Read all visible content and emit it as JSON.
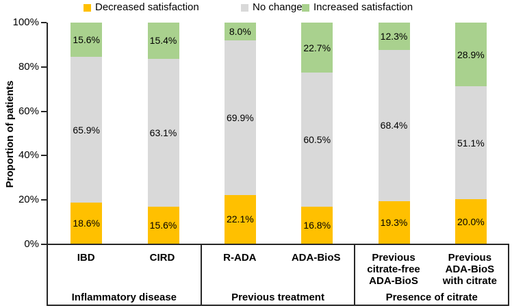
{
  "legend": {
    "items": [
      {
        "label": "Decreased satisfaction",
        "color": "#FFC000"
      },
      {
        "label": "No change",
        "color": "#D9D9D9"
      },
      {
        "label": "Increased satisfaction",
        "color": "#A9D18E"
      }
    ]
  },
  "y_axis": {
    "label": "Proportion of patients",
    "ticks": [
      "100%",
      "80%",
      "60%",
      "40%",
      "20%",
      "0%"
    ]
  },
  "colors": {
    "decreased": "#FFC000",
    "no_change": "#D9D9D9",
    "increased": "#A9D18E",
    "axis": "#262626"
  },
  "chart_data": {
    "type": "bar",
    "stacked": true,
    "percent_stacked": true,
    "title": "",
    "xlabel": "",
    "ylabel": "Proportion of patients",
    "ylim": [
      0,
      100
    ],
    "grid": false,
    "legend_position": "top",
    "groups": [
      {
        "label": "Inflammatory disease",
        "categories": [
          "IBD",
          "CIRD"
        ]
      },
      {
        "label": "Previous treatment",
        "categories": [
          "R-ADA",
          "ADA-BioS"
        ]
      },
      {
        "label": "Presence of citrate",
        "categories": [
          "Previous\ncitrate-free\nADA-BioS",
          "Previous\nADA-BioS\nwith citrate"
        ]
      }
    ],
    "series": [
      {
        "name": "Decreased satisfaction",
        "color": "#FFC000",
        "values": [
          18.6,
          15.6,
          22.1,
          16.8,
          19.3,
          20.0
        ],
        "labels": [
          "18.6%",
          "15.6%",
          "22.1%",
          "16.8%",
          "19.3%",
          "20.0%"
        ]
      },
      {
        "name": "No change",
        "color": "#D9D9D9",
        "values": [
          65.9,
          63.1,
          69.9,
          60.5,
          68.4,
          51.1
        ],
        "labels": [
          "65.9%",
          "63.1%",
          "69.9%",
          "60.5%",
          "68.4%",
          "51.1%"
        ]
      },
      {
        "name": "Increased satisfaction",
        "color": "#A9D18E",
        "values": [
          15.6,
          15.4,
          8.0,
          22.7,
          12.3,
          28.9
        ],
        "labels": [
          "15.6%",
          "15.4%",
          "8.0%",
          "22.7%",
          "12.3%",
          "28.9%"
        ]
      }
    ]
  }
}
